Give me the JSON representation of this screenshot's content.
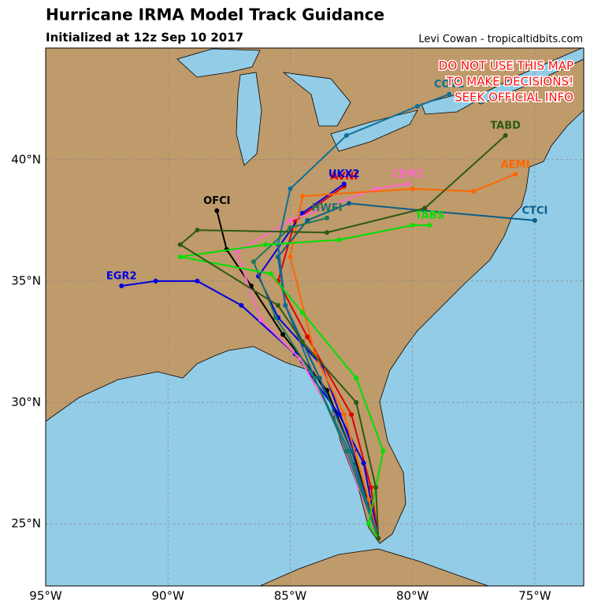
{
  "title": "Hurricane IRMA Model Track Guidance",
  "subtitle": "Initialized at 12z Sep 10 2017",
  "credit": "Levi Cowan - tropicaltidbits.com",
  "warning": [
    "DO NOT USE THIS MAP",
    "TO MAKE DECISIONS!",
    "SEEK OFFICIAL INFO"
  ],
  "xlim": [
    -95,
    -73
  ],
  "ylim": [
    22.44,
    44.6
  ],
  "xticks": [
    {
      "value": -95,
      "label": "95°W"
    },
    {
      "value": -90,
      "label": "90°W"
    },
    {
      "value": -85,
      "label": "85°W"
    },
    {
      "value": -80,
      "label": "80°W"
    },
    {
      "value": -75,
      "label": "75°W"
    }
  ],
  "yticks": [
    {
      "value": 25,
      "label": "25°N"
    },
    {
      "value": 30,
      "label": "30°N"
    },
    {
      "value": 35,
      "label": "35°N"
    },
    {
      "value": 40,
      "label": "40°N"
    }
  ],
  "grid": true,
  "tracks": [
    {
      "name": "AVNI",
      "color": "#e00000",
      "lon": [
        -81.4,
        -81.7,
        -82.5,
        -84.3,
        -85.5,
        -84.8,
        -82.8
      ],
      "lat": [
        24.4,
        26.5,
        29.5,
        32.7,
        35,
        37.5,
        38.9
      ]
    },
    {
      "name": "UKX2",
      "color": "#0000e0",
      "lon": [
        -81.4,
        -82.4,
        -83.7,
        -85.5,
        -86.3,
        -84.5,
        -82.8
      ],
      "lat": [
        24.4,
        28,
        31.5,
        33.5,
        35.2,
        37.8,
        39
      ]
    },
    {
      "name": "OFCI",
      "color": "#000000",
      "lon": [
        -81.4,
        -82.3,
        -83.5,
        -85.3,
        -86.6,
        -87.6,
        -88
      ],
      "lat": [
        24.4,
        27.5,
        30.5,
        32.8,
        34.8,
        36.3,
        37.9
      ]
    },
    {
      "name": "EGR2",
      "color": "#0000e0",
      "lon": [
        -81.4,
        -82,
        -83,
        -84.8,
        -87,
        -88.8,
        -90.5,
        -91.9
      ],
      "lat": [
        24.4,
        27.5,
        29.5,
        32,
        34,
        35,
        35,
        34.8
      ]
    },
    {
      "name": "CEM2",
      "color": "#ff66cc",
      "lon": [
        -81.4,
        -82.2,
        -83.3,
        -84.6,
        -86.2,
        -87.2,
        -85,
        -81.5,
        -80.2
      ],
      "lat": [
        24.4,
        26.5,
        29.5,
        31.8,
        33.4,
        36.2,
        37.5,
        38.8,
        39
      ]
    },
    {
      "name": "AEMI",
      "color": "#ff6600",
      "lon": [
        -81.4,
        -81.8,
        -82.8,
        -84,
        -85,
        -84.5,
        -80,
        -77.5,
        -75.8
      ],
      "lat": [
        24.4,
        26,
        29.5,
        32,
        36,
        38.5,
        38.8,
        38.7,
        39.4
      ]
    },
    {
      "name": "CTCI",
      "color": "#0b5e8c",
      "lon": [
        -81.4,
        -82.5,
        -83.8,
        -85.2,
        -85.5,
        -84.3,
        -82.6,
        -79.5,
        -75
      ],
      "lat": [
        24.4,
        28,
        31,
        34,
        36,
        37.5,
        38.2,
        37.9,
        37.5
      ]
    },
    {
      "name": "COT2",
      "color": "#0e6f99",
      "lon": [
        -81.4,
        -82.6,
        -84,
        -85.2,
        -85.5,
        -85,
        -82.7,
        -79.8,
        -78.5
      ],
      "lat": [
        24.4,
        28,
        31,
        34,
        36.5,
        38.8,
        41,
        42.2,
        42.7
      ]
    },
    {
      "name": "HWFI",
      "color": "#1a7a5a",
      "lon": [
        -81.4,
        -82.7,
        -84,
        -85.6,
        -86.5,
        -85,
        -83.5
      ],
      "lat": [
        24.4,
        28,
        31,
        33.5,
        35.8,
        37.2,
        37.6
      ]
    },
    {
      "name": "TABS",
      "color": "#00e000",
      "lon": [
        -81.4,
        -81.8,
        -81.2,
        -82.3,
        -84.5,
        -85.8,
        -89.5,
        -86,
        -83,
        -80,
        -79.3
      ],
      "lat": [
        24.4,
        25,
        28,
        31,
        33.7,
        35.3,
        36,
        36.5,
        36.7,
        37.3,
        37.3
      ]
    },
    {
      "name": "TABD",
      "color": "#2d5a12",
      "lon": [
        -81.4,
        -81.5,
        -82.3,
        -84.5,
        -85.5,
        -89.5,
        -88.8,
        -83.5,
        -79.5,
        -76.2
      ],
      "lat": [
        24.4,
        26.5,
        30,
        32.5,
        34,
        36.5,
        37.1,
        37,
        38,
        41
      ]
    }
  ]
}
